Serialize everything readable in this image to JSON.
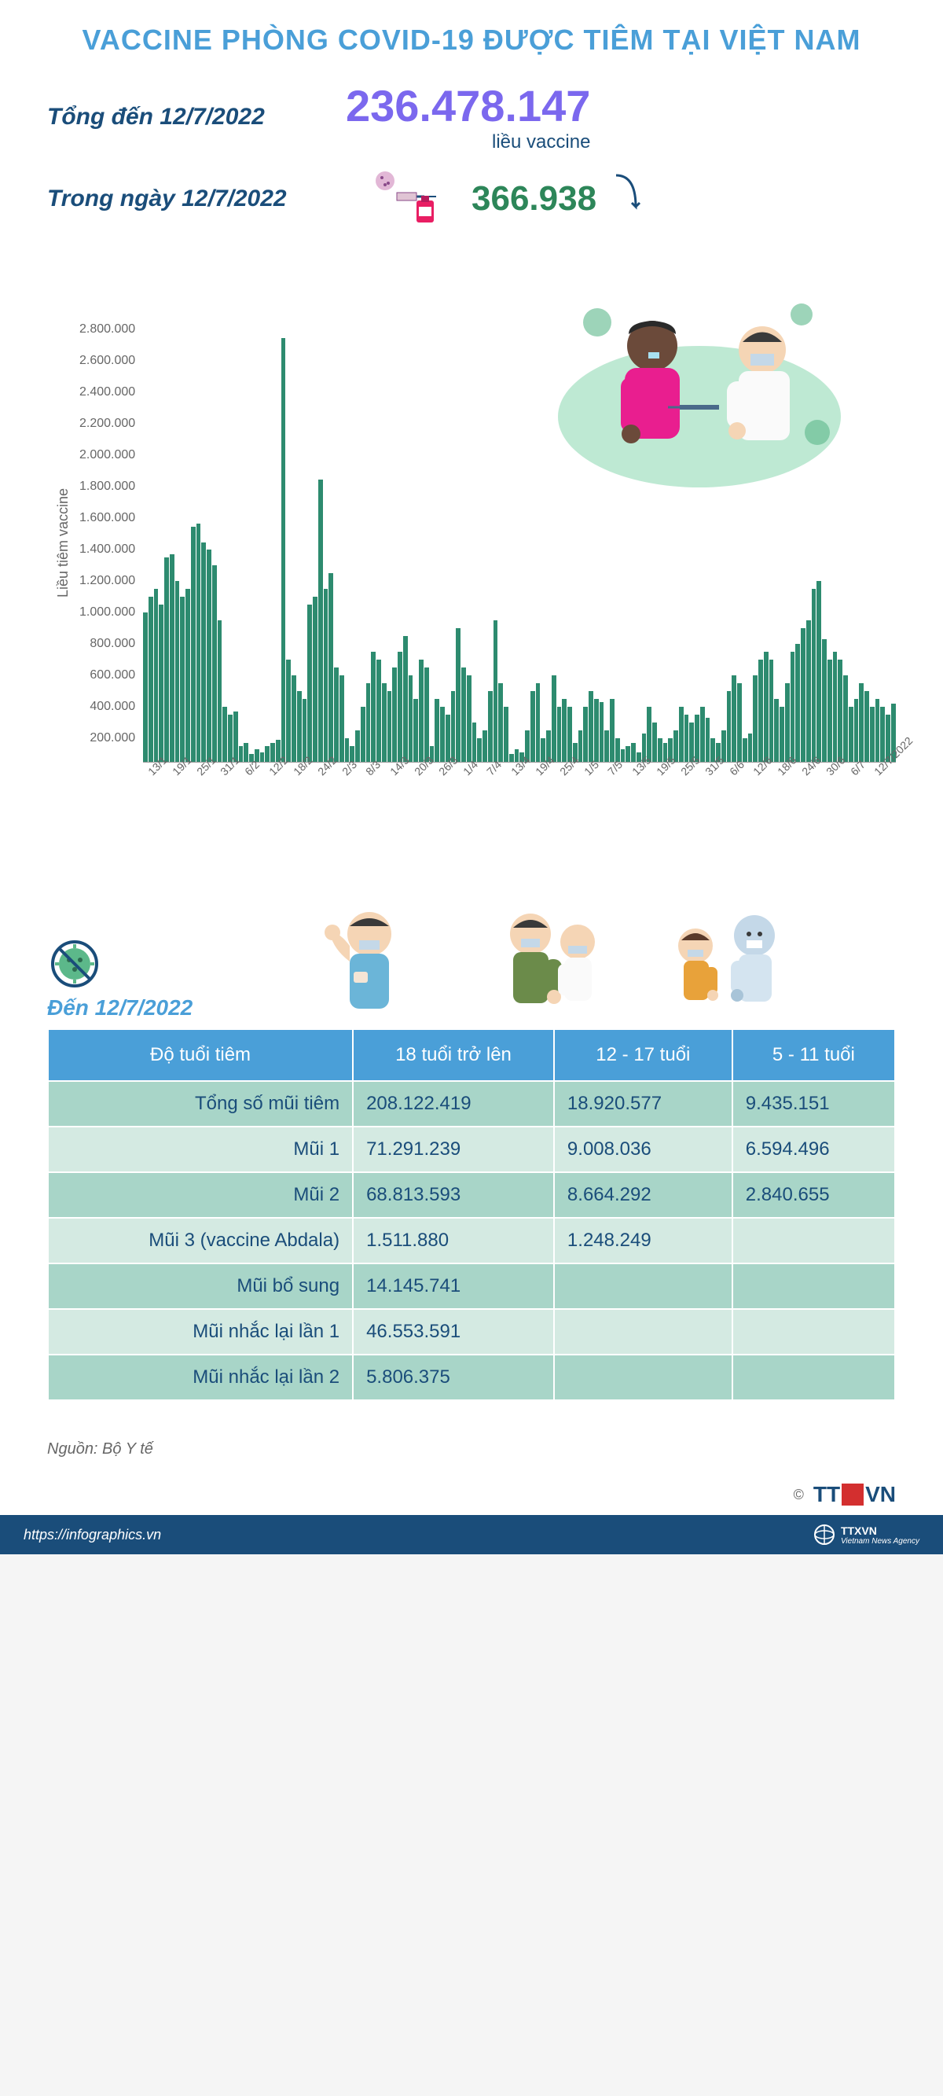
{
  "header": {
    "title": "VACCINE PHÒNG COVID-19 ĐƯỢC TIÊM TẠI VIỆT NAM",
    "title_color": "#4a9fd8"
  },
  "stats": {
    "total_label": "Tổng đến 12/7/2022",
    "total_value": "236.478.147",
    "total_unit": "liều vaccine",
    "daily_label": "Trong ngày 12/7/2022",
    "daily_value": "366.938"
  },
  "chart": {
    "type": "bar",
    "y_label": "Liều tiêm vaccine",
    "ylim": [
      0,
      2800000
    ],
    "ytick_step": 200000,
    "y_ticks": [
      "2.800.000",
      "2.600.000",
      "2.400.000",
      "2.200.000",
      "2.000.000",
      "1.800.000",
      "1.600.000",
      "1.400.000",
      "1.200.000",
      "1.000.000",
      "800.000",
      "600.000",
      "400.000",
      "200.000"
    ],
    "bar_color": "#2d8b6f",
    "background": "#ffffff",
    "values": [
      950000,
      1050000,
      1100000,
      1000000,
      1300000,
      1320000,
      1150000,
      1050000,
      1100000,
      1500000,
      1520000,
      1400000,
      1350000,
      1250000,
      900000,
      350000,
      300000,
      320000,
      100000,
      120000,
      50000,
      80000,
      60000,
      100000,
      120000,
      140000,
      2700000,
      650000,
      550000,
      450000,
      400000,
      1000000,
      1050000,
      1800000,
      1100000,
      1200000,
      600000,
      550000,
      150000,
      100000,
      200000,
      350000,
      500000,
      700000,
      650000,
      500000,
      450000,
      600000,
      700000,
      800000,
      550000,
      400000,
      650000,
      600000,
      100000,
      400000,
      350000,
      300000,
      450000,
      850000,
      600000,
      550000,
      250000,
      150000,
      200000,
      450000,
      900000,
      500000,
      350000,
      50000,
      80000,
      60000,
      200000,
      450000,
      500000,
      150000,
      200000,
      550000,
      350000,
      400000,
      350000,
      120000,
      200000,
      350000,
      450000,
      400000,
      380000,
      200000,
      400000,
      150000,
      80000,
      100000,
      120000,
      60000,
      180000,
      350000,
      250000,
      150000,
      120000,
      150000,
      200000,
      350000,
      300000,
      250000,
      300000,
      350000,
      280000,
      150000,
      120000,
      200000,
      450000,
      550000,
      500000,
      150000,
      180000,
      550000,
      650000,
      700000,
      650000,
      400000,
      350000,
      500000,
      700000,
      750000,
      850000,
      900000,
      1100000,
      1150000,
      780000,
      650000,
      700000,
      650000,
      550000,
      350000,
      400000,
      500000,
      450000,
      350000,
      400000,
      350000,
      300000,
      370000
    ],
    "x_labels": [
      "13/1",
      "19/1",
      "25/1",
      "31/1",
      "6/2",
      "12/2",
      "18/2",
      "24/2",
      "2/3",
      "8/3",
      "14/3",
      "20/3",
      "26/3",
      "1/4",
      "7/4",
      "13/4",
      "19/4",
      "25/4",
      "1/5",
      "7/5",
      "13/5",
      "19/5",
      "25/5",
      "31/5",
      "6/6",
      "12/6",
      "18/6",
      "24/6",
      "30/6",
      "6/7",
      "12/7/2022"
    ]
  },
  "table": {
    "date_label": "Đến 12/7/2022",
    "header_bg": "#4a9fd8",
    "row_dark_bg": "#a8d5c8",
    "row_light_bg": "#d4eae2",
    "text_color": "#1a4d7a",
    "columns": [
      "Độ tuổi tiêm",
      "18 tuổi trở lên",
      "12 - 17 tuổi",
      "5 - 11 tuổi"
    ],
    "rows": [
      {
        "label": "Tổng số mũi tiêm",
        "c1": "208.122.419",
        "c2": "18.920.577",
        "c3": "9.435.151",
        "shade": "dark"
      },
      {
        "label": "Mũi 1",
        "c1": "71.291.239",
        "c2": "9.008.036",
        "c3": "6.594.496",
        "shade": "light"
      },
      {
        "label": "Mũi 2",
        "c1": "68.813.593",
        "c2": "8.664.292",
        "c3": "2.840.655",
        "shade": "dark"
      },
      {
        "label": "Mũi 3 (vaccine Abdala)",
        "c1": "1.511.880",
        "c2": "1.248.249",
        "c3": "",
        "shade": "light"
      },
      {
        "label": "Mũi bổ sung",
        "c1": "14.145.741",
        "c2": "",
        "c3": "",
        "shade": "dark"
      },
      {
        "label": "Mũi nhắc lại lần 1",
        "c1": "46.553.591",
        "c2": "",
        "c3": "",
        "shade": "light"
      },
      {
        "label": "Mũi nhắc lại lần 2",
        "c1": "5.806.375",
        "c2": "",
        "c3": "",
        "shade": "dark"
      }
    ]
  },
  "source": "Nguồn: Bộ Y tế",
  "footer": {
    "url": "https://infographics.vn",
    "agency": "TTXVN",
    "agency_sub": "Vietnam News Agency",
    "copyright": "©"
  }
}
